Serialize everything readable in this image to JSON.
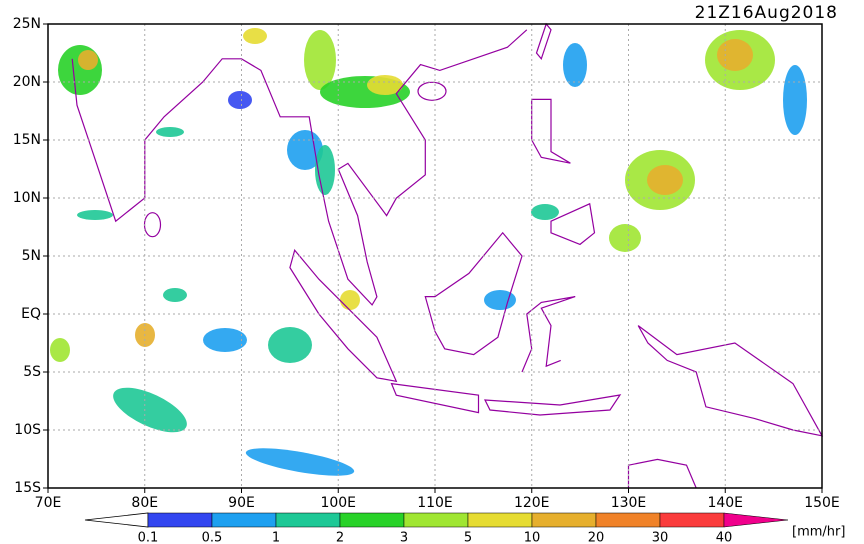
{
  "map": {
    "title": "21Z16Aug2018",
    "lon_ticks": [
      {
        "value": 70,
        "label": "70E"
      },
      {
        "value": 80,
        "label": "80E"
      },
      {
        "value": 90,
        "label": "90E"
      },
      {
        "value": 100,
        "label": "100E"
      },
      {
        "value": 110,
        "label": "110E"
      },
      {
        "value": 120,
        "label": "120E"
      },
      {
        "value": 130,
        "label": "130E"
      },
      {
        "value": 140,
        "label": "140E"
      },
      {
        "value": 150,
        "label": "150E"
      }
    ],
    "lat_ticks": [
      {
        "value": 25,
        "label": "25N"
      },
      {
        "value": 20,
        "label": "20N"
      },
      {
        "value": 15,
        "label": "15N"
      },
      {
        "value": 10,
        "label": "10N"
      },
      {
        "value": 5,
        "label": "5N"
      },
      {
        "value": 0,
        "label": "EQ"
      },
      {
        "value": -5,
        "label": "5S"
      },
      {
        "value": -10,
        "label": "10S"
      },
      {
        "value": -15,
        "label": "15S"
      }
    ],
    "grid": true,
    "colorbar": {
      "levels": [
        0.1,
        0.5,
        1,
        2,
        3,
        5,
        10,
        20,
        30,
        40
      ],
      "colors": [
        "#3246f0",
        "#1ea0f0",
        "#1ec896",
        "#28d228",
        "#a0e632",
        "#e6dc32",
        "#e6af2d",
        "#f08228",
        "#fa3c3c",
        "#f0008c"
      ],
      "unit": "[mm/hr]"
    }
  }
}
